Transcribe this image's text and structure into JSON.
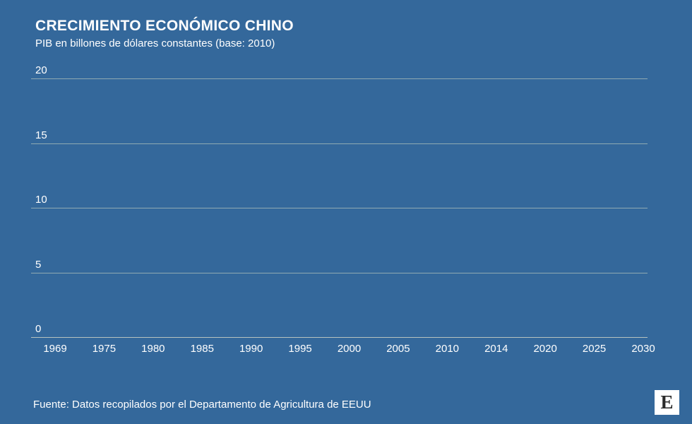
{
  "chart_data": {
    "type": "line",
    "title": "CRECIMIENTO ECONÓMICO CHINO",
    "subtitle": "PIB en billones de dólares constantes (base: 2010)",
    "xlabel": "",
    "ylabel": "",
    "ylim": [
      0,
      20
    ],
    "y_ticks": [
      20,
      15,
      10,
      5,
      0
    ],
    "x_tick_labels": [
      "1969",
      "1975",
      "1980",
      "1985",
      "1990",
      "1995",
      "2000",
      "2005",
      "2010",
      "2014",
      "2020",
      "2025",
      "2030"
    ],
    "grid": "horizontal gridlines on, no vertical gridlines",
    "legend": "none",
    "series": []
  },
  "footer": {
    "source": "Fuente: Datos recopilados por el Departamento de Agricultura de EEUU",
    "logo_letter": "E"
  },
  "colors": {
    "background": "#34689b",
    "gridline": "#8faab2",
    "baseline": "#b7c3bf",
    "text": "#ffffff",
    "logo_background": "#ffffff",
    "logo_letter": "#2b2b2b"
  }
}
